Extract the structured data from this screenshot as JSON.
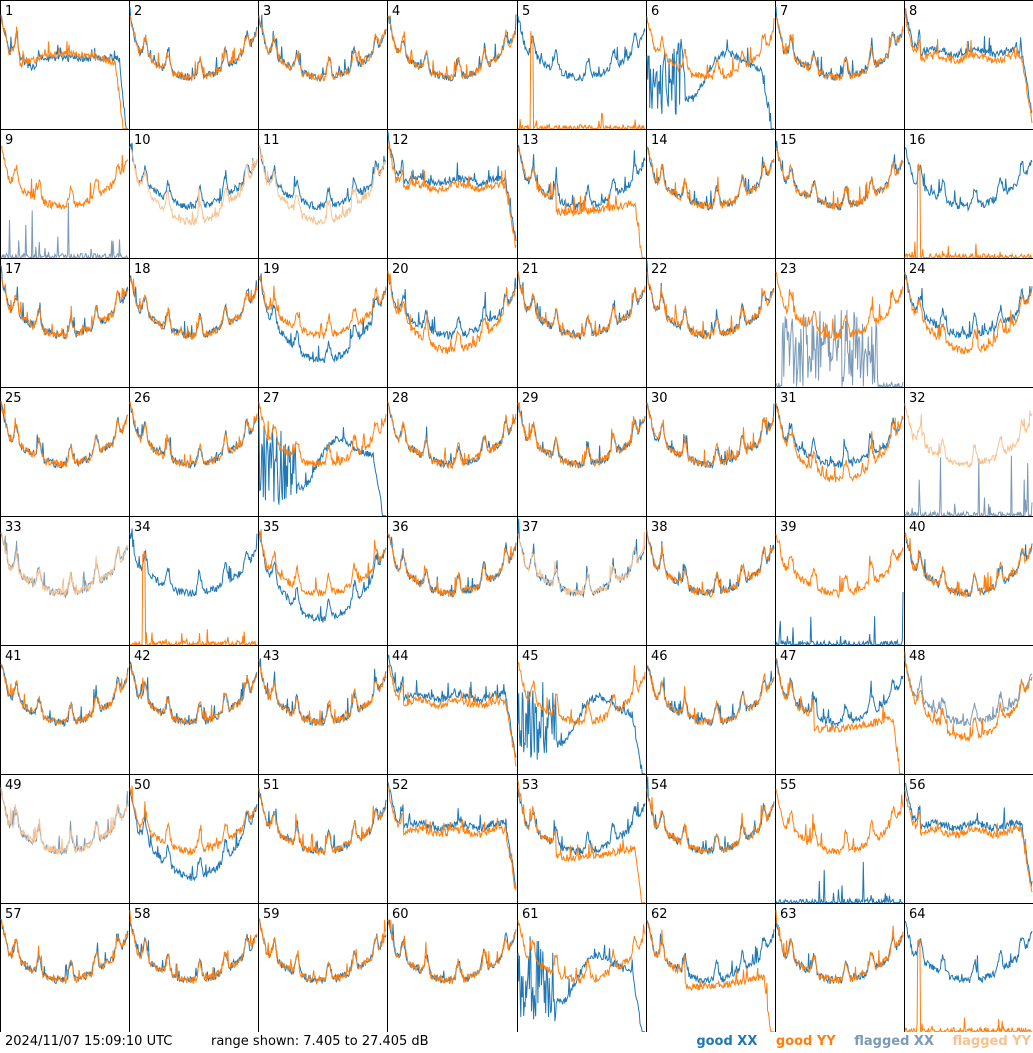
{
  "timestamp": "2024/11/07 15:09:10 UTC",
  "range_text": "range shown: 7.405 to 27.405 dB",
  "legend": [
    {
      "label": "good XX",
      "color": "#1f77b4"
    },
    {
      "label": "good YY",
      "color": "#ff7f0e"
    },
    {
      "label": "flagged XX",
      "color": "#7a9ab8"
    },
    {
      "label": "flagged YY",
      "color": "#f8c290"
    }
  ],
  "chart_data": {
    "type": "line",
    "ylim": [
      7.405,
      27.405
    ],
    "panels": [
      {
        "id": "1",
        "xx": "good",
        "yy": "good",
        "shape": "drop"
      },
      {
        "id": "2",
        "xx": "good",
        "yy": "good",
        "shape": "normal"
      },
      {
        "id": "3",
        "xx": "good",
        "yy": "good",
        "shape": "normal"
      },
      {
        "id": "4",
        "xx": "good",
        "yy": "good",
        "shape": "normal"
      },
      {
        "id": "5",
        "xx": "good",
        "yy": "good",
        "shape": "yy_dead"
      },
      {
        "id": "6",
        "xx": "good",
        "yy": "good",
        "shape": "xx_drop"
      },
      {
        "id": "7",
        "xx": "good",
        "yy": "good",
        "shape": "normal"
      },
      {
        "id": "8",
        "xx": "good",
        "yy": "good",
        "shape": "flat"
      },
      {
        "id": "9",
        "xx": "flagged",
        "yy": "good",
        "shape": "xx_dead"
      },
      {
        "id": "10",
        "xx": "good",
        "yy": "flagged",
        "shape": "split"
      },
      {
        "id": "11",
        "xx": "good",
        "yy": "flagged",
        "shape": "split"
      },
      {
        "id": "12",
        "xx": "good",
        "yy": "good",
        "shape": "flat"
      },
      {
        "id": "13",
        "xx": "good",
        "yy": "good",
        "shape": "yy_drop"
      },
      {
        "id": "14",
        "xx": "good",
        "yy": "good",
        "shape": "normal"
      },
      {
        "id": "15",
        "xx": "good",
        "yy": "good",
        "shape": "normal"
      },
      {
        "id": "16",
        "xx": "good",
        "yy": "good",
        "shape": "yy_dead"
      },
      {
        "id": "17",
        "xx": "good",
        "yy": "good",
        "shape": "normal"
      },
      {
        "id": "18",
        "xx": "good",
        "yy": "good",
        "shape": "normal"
      },
      {
        "id": "19",
        "xx": "good",
        "yy": "good",
        "shape": "xx_low"
      },
      {
        "id": "20",
        "xx": "good",
        "yy": "good",
        "shape": "split"
      },
      {
        "id": "21",
        "xx": "good",
        "yy": "good",
        "shape": "normal"
      },
      {
        "id": "22",
        "xx": "good",
        "yy": "good",
        "shape": "normal"
      },
      {
        "id": "23",
        "xx": "flagged",
        "yy": "good",
        "shape": "xx_noise"
      },
      {
        "id": "24",
        "xx": "good",
        "yy": "good",
        "shape": "split"
      },
      {
        "id": "25",
        "xx": "good",
        "yy": "good",
        "shape": "normal"
      },
      {
        "id": "26",
        "xx": "good",
        "yy": "good",
        "shape": "normal"
      },
      {
        "id": "27",
        "xx": "good",
        "yy": "good",
        "shape": "xx_drop"
      },
      {
        "id": "28",
        "xx": "good",
        "yy": "good",
        "shape": "normal"
      },
      {
        "id": "29",
        "xx": "good",
        "yy": "good",
        "shape": "normal"
      },
      {
        "id": "30",
        "xx": "good",
        "yy": "good",
        "shape": "normal"
      },
      {
        "id": "31",
        "xx": "good",
        "yy": "good",
        "shape": "split"
      },
      {
        "id": "32",
        "xx": "flagged",
        "yy": "flagged",
        "shape": "xx_dead"
      },
      {
        "id": "33",
        "xx": "flagged",
        "yy": "flagged",
        "shape": "normal"
      },
      {
        "id": "34",
        "xx": "good",
        "yy": "good",
        "shape": "yy_dead"
      },
      {
        "id": "35",
        "xx": "good",
        "yy": "good",
        "shape": "xx_low"
      },
      {
        "id": "36",
        "xx": "good",
        "yy": "good",
        "shape": "normal"
      },
      {
        "id": "37",
        "xx": "good",
        "yy": "flagged",
        "shape": "normal"
      },
      {
        "id": "38",
        "xx": "good",
        "yy": "good",
        "shape": "normal"
      },
      {
        "id": "39",
        "xx": "good",
        "yy": "good",
        "shape": "xx_dead"
      },
      {
        "id": "40",
        "xx": "good",
        "yy": "good",
        "shape": "normal"
      },
      {
        "id": "41",
        "xx": "good",
        "yy": "good",
        "shape": "normal"
      },
      {
        "id": "42",
        "xx": "good",
        "yy": "good",
        "shape": "normal"
      },
      {
        "id": "43",
        "xx": "good",
        "yy": "good",
        "shape": "normal"
      },
      {
        "id": "44",
        "xx": "good",
        "yy": "good",
        "shape": "flat"
      },
      {
        "id": "45",
        "xx": "good",
        "yy": "good",
        "shape": "xx_drop"
      },
      {
        "id": "46",
        "xx": "good",
        "yy": "good",
        "shape": "normal"
      },
      {
        "id": "47",
        "xx": "good",
        "yy": "good",
        "shape": "yy_drop"
      },
      {
        "id": "48",
        "xx": "flagged",
        "yy": "good",
        "shape": "split"
      },
      {
        "id": "49",
        "xx": "flagged",
        "yy": "flagged",
        "shape": "normal"
      },
      {
        "id": "50",
        "xx": "good",
        "yy": "good",
        "shape": "xx_low"
      },
      {
        "id": "51",
        "xx": "good",
        "yy": "good",
        "shape": "normal"
      },
      {
        "id": "52",
        "xx": "good",
        "yy": "good",
        "shape": "flat"
      },
      {
        "id": "53",
        "xx": "good",
        "yy": "good",
        "shape": "yy_drop"
      },
      {
        "id": "54",
        "xx": "good",
        "yy": "good",
        "shape": "normal"
      },
      {
        "id": "55",
        "xx": "good",
        "yy": "good",
        "shape": "xx_dead"
      },
      {
        "id": "56",
        "xx": "good",
        "yy": "good",
        "shape": "flat"
      },
      {
        "id": "57",
        "xx": "good",
        "yy": "good",
        "shape": "normal"
      },
      {
        "id": "58",
        "xx": "good",
        "yy": "good",
        "shape": "normal"
      },
      {
        "id": "59",
        "xx": "good",
        "yy": "good",
        "shape": "normal"
      },
      {
        "id": "60",
        "xx": "good",
        "yy": "good",
        "shape": "normal"
      },
      {
        "id": "61",
        "xx": "good",
        "yy": "good",
        "shape": "xx_drop"
      },
      {
        "id": "62",
        "xx": "good",
        "yy": "good",
        "shape": "yy_drop"
      },
      {
        "id": "63",
        "xx": "good",
        "yy": "good",
        "shape": "normal"
      },
      {
        "id": "64",
        "xx": "good",
        "yy": "good",
        "shape": "yy_dead"
      }
    ]
  }
}
